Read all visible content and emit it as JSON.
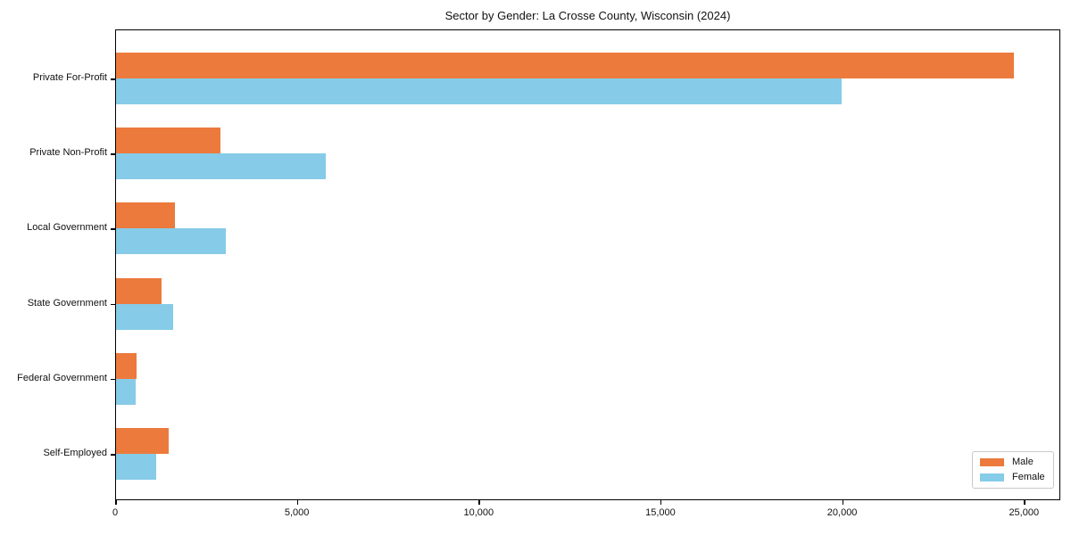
{
  "chart_data": {
    "type": "bar",
    "orientation": "horizontal",
    "title": "Sector by Gender: La Crosse County, Wisconsin (2024)",
    "categories": [
      "Private For-Profit",
      "Private Non-Profit",
      "Local Government",
      "State Government",
      "Federal Government",
      "Self-Employed"
    ],
    "series": [
      {
        "name": "Male",
        "color": "#ec7a3d",
        "values": [
          24700,
          2870,
          1620,
          1250,
          560,
          1450
        ]
      },
      {
        "name": "Female",
        "color": "#86cbe8",
        "values": [
          19950,
          5780,
          3020,
          1570,
          530,
          1100
        ]
      }
    ],
    "xlabel": "",
    "ylabel": "",
    "xlim": [
      0,
      26000
    ],
    "xticks": [
      0,
      5000,
      10000,
      15000,
      20000,
      25000
    ],
    "xtick_labels": [
      "0",
      "5,000",
      "10,000",
      "15,000",
      "20,000",
      "25,000"
    ],
    "grid": false,
    "legend": {
      "position": "lower-right",
      "items": [
        "Male",
        "Female"
      ]
    },
    "colors": {
      "axis": "#000000",
      "background": "#ffffff",
      "legend_border": "#c9c9c9"
    }
  }
}
